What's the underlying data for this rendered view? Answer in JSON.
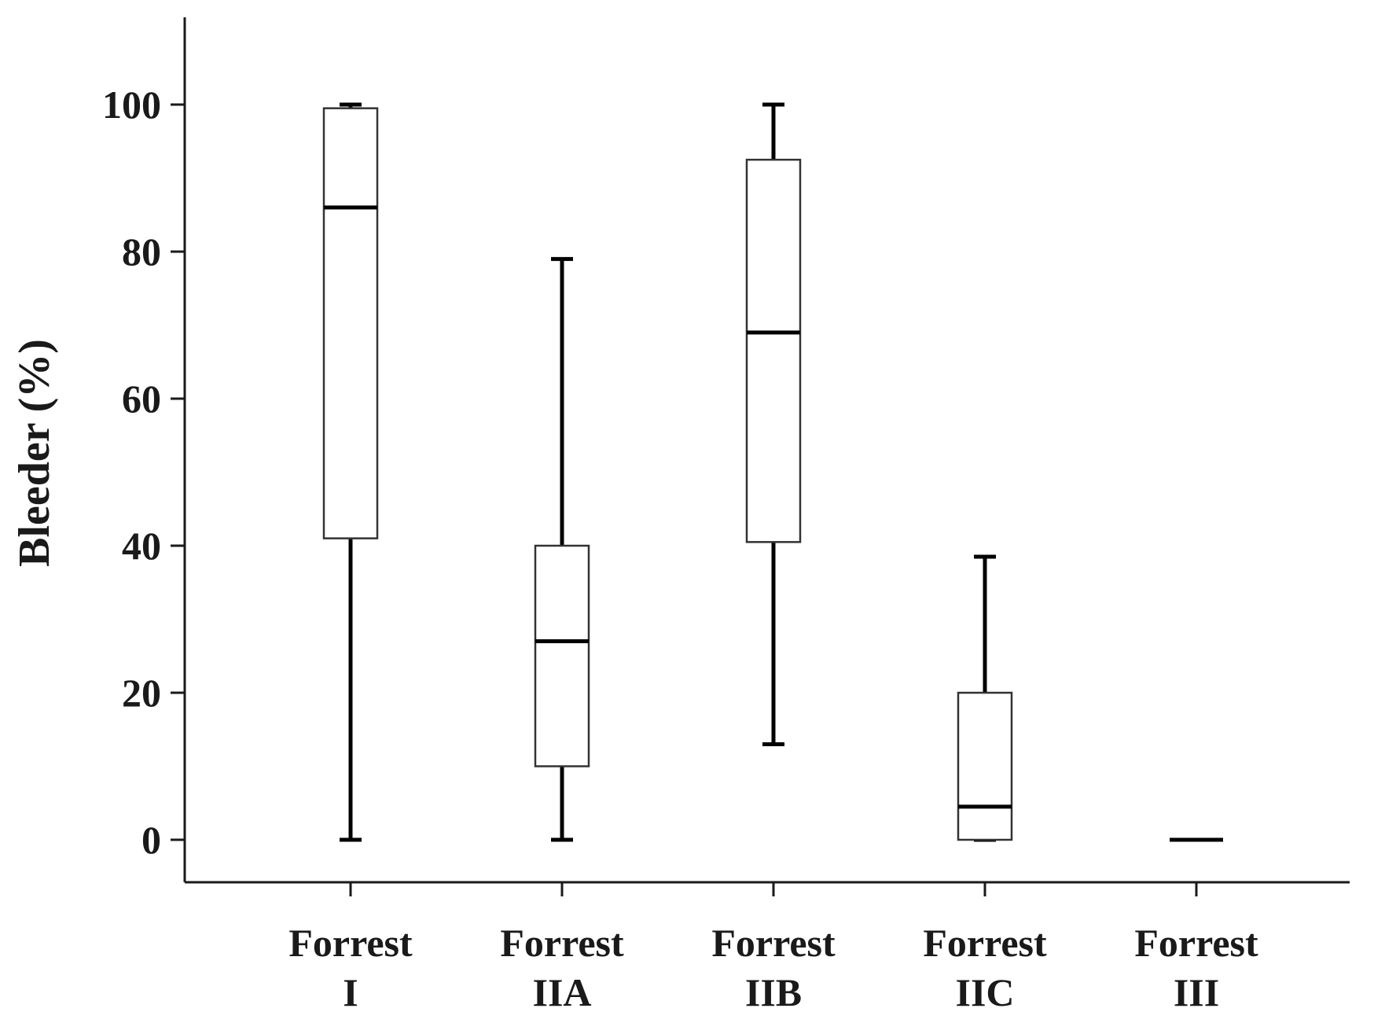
{
  "chart_data": {
    "type": "box",
    "ylabel": "Bleeder (%)",
    "xlabel": "",
    "ylim": [
      -5,
      112
    ],
    "yticks": [
      0,
      20,
      40,
      60,
      80,
      100
    ],
    "grid": false,
    "legend": "none",
    "categories": [
      {
        "line1": "Forrest",
        "line2": "I"
      },
      {
        "line1": "Forrest",
        "line2": "IIA"
      },
      {
        "line1": "Forrest",
        "line2": "IIB"
      },
      {
        "line1": "Forrest",
        "line2": "IIC"
      },
      {
        "line1": "Forrest",
        "line2": "III"
      }
    ],
    "boxes": [
      {
        "min": 0,
        "q1": 41,
        "median": 86,
        "q3": 99.5,
        "max": 100
      },
      {
        "min": 0,
        "q1": 10,
        "median": 27,
        "q3": 40,
        "max": 79
      },
      {
        "min": 13,
        "q1": 40.5,
        "median": 69,
        "q3": 92.5,
        "max": 100
      },
      {
        "min": 0,
        "q1": 0,
        "median": 4.5,
        "q3": 20,
        "max": 38.5
      },
      {
        "min": 0,
        "q1": 0,
        "median": 0,
        "q3": 0,
        "max": 0
      }
    ]
  }
}
